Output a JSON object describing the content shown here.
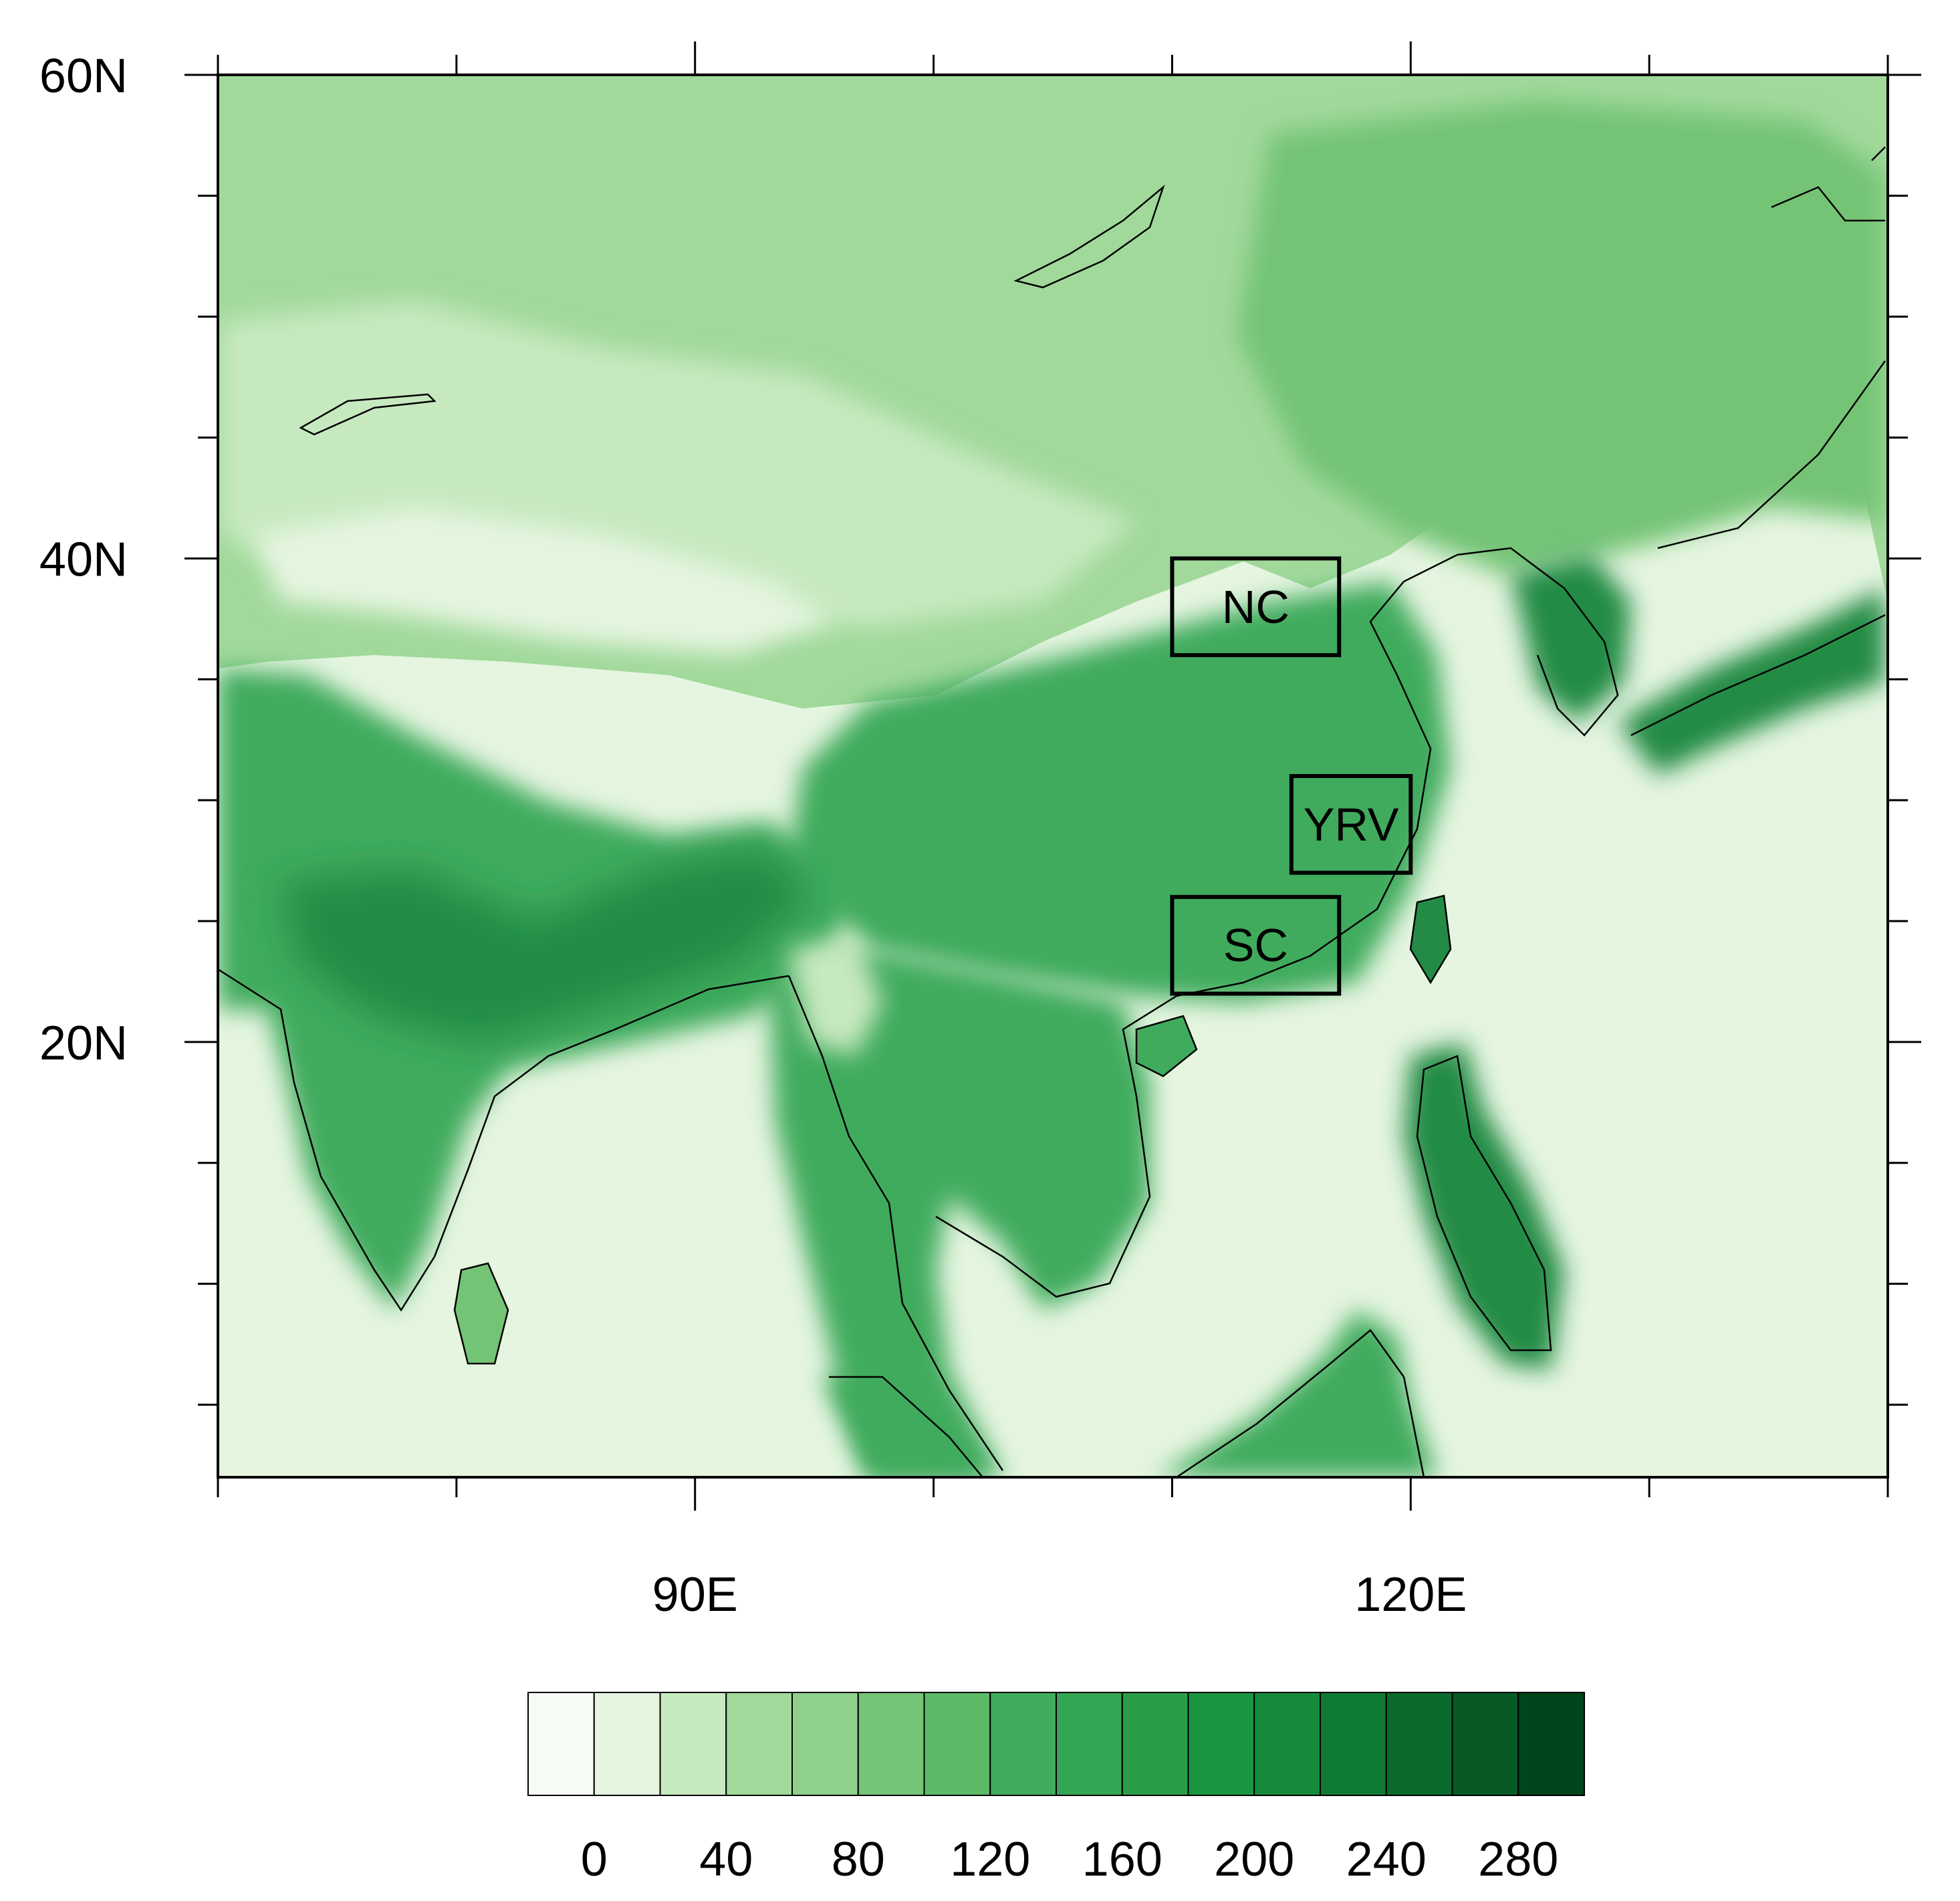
{
  "map": {
    "y_axis_labels": [
      {
        "text": "60N",
        "lat": 60
      },
      {
        "text": "40N",
        "lat": 40
      },
      {
        "text": "20N",
        "lat": 20
      }
    ],
    "x_axis_labels": [
      {
        "text": "90E",
        "lon": 90
      },
      {
        "text": "120E",
        "lon": 120
      }
    ],
    "extent": {
      "lon_min": 70,
      "lon_max": 140,
      "lat_min": 2,
      "lat_max": 60
    },
    "regions": [
      {
        "id": "nc",
        "label": "NC",
        "lon": [
          110,
          117
        ],
        "lat": [
          36,
          40
        ]
      },
      {
        "id": "yrv",
        "label": "YRV",
        "lon": [
          115,
          120
        ],
        "lat": [
          27,
          31
        ]
      },
      {
        "id": "sc",
        "label": "SC",
        "lon": [
          110,
          117
        ],
        "lat": [
          22,
          26
        ]
      }
    ]
  },
  "colorbar": {
    "labels": [
      "0",
      "40",
      "80",
      "120",
      "160",
      "200",
      "240",
      "280"
    ],
    "label_values": [
      0,
      40,
      80,
      120,
      160,
      200,
      240,
      280
    ],
    "colors": [
      "#f7fcf5",
      "#e5f5e0",
      "#c7e9c0",
      "#a1d99b",
      "#8fd18a",
      "#74c476",
      "#5cb968",
      "#41ab5d",
      "#35a653",
      "#2a9d48",
      "#1a9641",
      "#158a3a",
      "#0f7a33",
      "#0b6b2c",
      "#075a25",
      "#00441b"
    ]
  },
  "colors": {
    "ocean": "#e5f5e0",
    "frame": "#000000"
  }
}
